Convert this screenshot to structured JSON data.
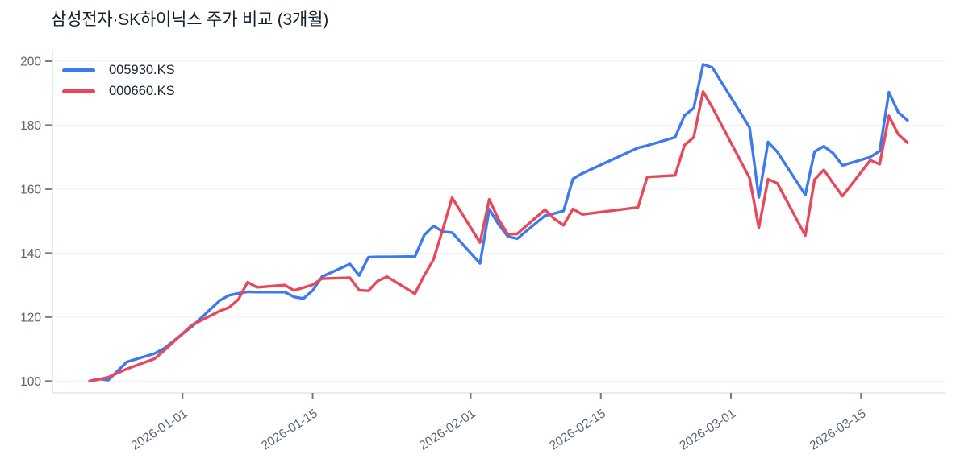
{
  "chart_data": {
    "type": "line",
    "title": "삼성전자·SK하이닉스 주가 비교 (3개월)",
    "xlabel": "",
    "ylabel": "",
    "legend_position": "top-left-inside",
    "grid": "horizontal-only",
    "ylim": [
      96.3,
      203.5
    ],
    "xlim": [
      "2025-12-18",
      "2026-03-24"
    ],
    "y_ticks": [
      100,
      120,
      140,
      160,
      180,
      200
    ],
    "x_ticks": [
      "2026-01-01",
      "2026-01-15",
      "2026-02-01",
      "2026-02-15",
      "2026-03-01",
      "2026-03-15"
    ],
    "x": [
      "2025-12-22",
      "2025-12-23",
      "2025-12-24",
      "2025-12-26",
      "2025-12-29",
      "2025-12-30",
      "2026-01-02",
      "2026-01-05",
      "2026-01-06",
      "2026-01-07",
      "2026-01-08",
      "2026-01-09",
      "2026-01-12",
      "2026-01-13",
      "2026-01-14",
      "2026-01-15",
      "2026-01-16",
      "2026-01-19",
      "2026-01-20",
      "2026-01-21",
      "2026-01-22",
      "2026-01-23",
      "2026-01-26",
      "2026-01-27",
      "2026-01-28",
      "2026-01-29",
      "2026-01-30",
      "2026-02-02",
      "2026-02-03",
      "2026-02-04",
      "2026-02-05",
      "2026-02-06",
      "2026-02-09",
      "2026-02-10",
      "2026-02-11",
      "2026-02-12",
      "2026-02-13",
      "2026-02-19",
      "2026-02-20",
      "2026-02-23",
      "2026-02-24",
      "2026-02-25",
      "2026-02-26",
      "2026-02-27",
      "2026-03-03",
      "2026-03-04",
      "2026-03-05",
      "2026-03-06",
      "2026-03-09",
      "2026-03-10",
      "2026-03-11",
      "2026-03-12",
      "2026-03-13",
      "2026-03-16",
      "2026-03-17",
      "2026-03-18",
      "2026-03-19",
      "2026-03-20"
    ],
    "series": [
      {
        "name": "005930.KS",
        "color": "#3d7af0",
        "values": [
          100.0,
          100.7,
          100.3,
          106.0,
          108.6,
          110.2,
          117.0,
          125.2,
          126.8,
          127.4,
          127.9,
          127.8,
          127.8,
          126.3,
          125.8,
          128.3,
          132.6,
          136.6,
          133.0,
          138.7,
          138.8,
          138.8,
          138.9,
          145.6,
          148.5,
          146.7,
          146.4,
          136.8,
          153.7,
          149.0,
          145.2,
          144.5,
          151.7,
          152.4,
          153.2,
          163.2,
          164.9,
          172.9,
          173.6,
          176.2,
          183.0,
          185.3,
          199.0,
          198.0,
          179.3,
          157.4,
          174.7,
          171.6,
          158.2,
          171.7,
          173.4,
          171.2,
          167.4,
          170.0,
          171.9,
          190.3,
          184.0,
          181.5
        ]
      },
      {
        "name": "000660.KS",
        "color": "#e8495a",
        "values": [
          100.0,
          100.5,
          101.2,
          103.8,
          107.0,
          109.5,
          117.5,
          121.9,
          123.0,
          125.5,
          130.9,
          129.3,
          130.0,
          128.3,
          129.2,
          130.1,
          132.0,
          132.3,
          128.4,
          128.2,
          131.3,
          132.6,
          127.3,
          133.0,
          138.0,
          147.5,
          157.3,
          143.3,
          156.8,
          150.5,
          145.9,
          146.0,
          153.6,
          150.7,
          148.7,
          153.8,
          152.1,
          154.3,
          163.8,
          164.3,
          173.7,
          176.2,
          190.5,
          185.5,
          163.5,
          147.9,
          163.1,
          161.8,
          145.5,
          163.0,
          166.0,
          161.8,
          157.8,
          169.0,
          167.8,
          182.9,
          177.1,
          174.5
        ]
      }
    ],
    "colors": {
      "background": "#ffffff",
      "grid": "#edeff3",
      "axis_line": "#dfe3e9",
      "tick_mark": "#717b8c",
      "tick_label": "#5a6477",
      "title_text": "#15202f",
      "legend_text": "#1b2433"
    }
  }
}
